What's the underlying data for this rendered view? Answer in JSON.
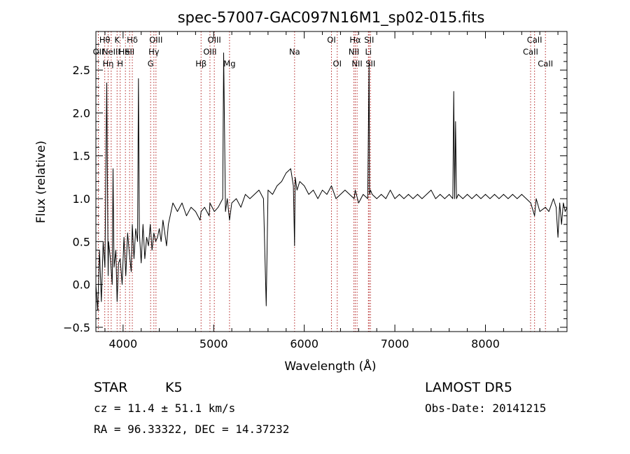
{
  "chart_data": {
    "type": "line",
    "title": "spec-57007-GAC097N16M1_sp02-015.fits",
    "xlabel": "Wavelength (Å)",
    "ylabel": "Flux (relative)",
    "xlim": [
      3700,
      8900
    ],
    "ylim": [
      -0.55,
      2.95
    ],
    "x_ticks": [
      4000,
      5000,
      6000,
      7000,
      8000
    ],
    "y_ticks": [
      -0.5,
      0.0,
      0.5,
      1.0,
      1.5,
      2.0,
      2.5
    ],
    "y_tick_labels": [
      "−0.5",
      "0.0",
      "0.5",
      "1.0",
      "1.5",
      "2.0",
      "2.5"
    ],
    "series_color": "#000000",
    "line_marker_color": "#b22222",
    "series": [
      {
        "x": [
          3700,
          3720,
          3740,
          3760,
          3780,
          3800,
          3820,
          3835,
          3840,
          3860,
          3880,
          3889,
          3900,
          3920,
          3934,
          3950,
          3968,
          3990,
          4010,
          4030,
          4050,
          4070,
          4090,
          4102,
          4120,
          4140,
          4160,
          4170,
          4180,
          4200,
          4220,
          4240,
          4260,
          4280,
          4300,
          4320,
          4340,
          4360,
          4380,
          4400,
          4420,
          4440,
          4460,
          4480,
          4500,
          4550,
          4600,
          4650,
          4700,
          4750,
          4800,
          4850,
          4861,
          4900,
          4950,
          4959,
          5007,
          5050,
          5100,
          5110,
          5130,
          5150,
          5175,
          5200,
          5250,
          5300,
          5350,
          5400,
          5450,
          5500,
          5550,
          5580,
          5600,
          5650,
          5700,
          5750,
          5800,
          5850,
          5880,
          5893,
          5900,
          5920,
          5950,
          6000,
          6050,
          6100,
          6150,
          6200,
          6250,
          6300,
          6350,
          6400,
          6450,
          6500,
          6550,
          6563,
          6600,
          6650,
          6700,
          6716,
          6720,
          6731,
          6750,
          6800,
          6850,
          6900,
          6950,
          7000,
          7050,
          7100,
          7150,
          7200,
          7250,
          7300,
          7350,
          7400,
          7450,
          7500,
          7550,
          7600,
          7640,
          7650,
          7660,
          7670,
          7680,
          7700,
          7750,
          7800,
          7850,
          7900,
          7950,
          8000,
          8050,
          8100,
          8150,
          8200,
          8250,
          8300,
          8350,
          8400,
          8450,
          8500,
          8542,
          8560,
          8600,
          8662,
          8700,
          8750,
          8780,
          8800,
          8820,
          8840,
          8860,
          8880,
          8900
        ],
        "y": [
          0.0,
          -0.3,
          0.4,
          -0.2,
          0.5,
          0.2,
          2.35,
          0.1,
          0.5,
          0.3,
          0.0,
          1.35,
          0.2,
          0.4,
          -0.2,
          0.25,
          0.3,
          0.0,
          0.55,
          0.1,
          0.6,
          0.35,
          0.15,
          0.7,
          0.3,
          0.65,
          0.5,
          2.4,
          0.6,
          0.25,
          0.7,
          0.3,
          0.55,
          0.45,
          0.7,
          0.4,
          0.6,
          0.5,
          0.55,
          0.65,
          0.5,
          0.75,
          0.6,
          0.45,
          0.7,
          0.95,
          0.85,
          0.95,
          0.8,
          0.9,
          0.85,
          0.75,
          0.85,
          0.9,
          0.8,
          0.95,
          0.85,
          0.9,
          1.0,
          2.7,
          0.85,
          1.0,
          0.75,
          0.95,
          1.0,
          0.9,
          1.05,
          1.0,
          1.05,
          1.1,
          1.0,
          -0.25,
          1.1,
          1.05,
          1.15,
          1.2,
          1.3,
          1.35,
          1.15,
          0.45,
          1.25,
          1.1,
          1.2,
          1.15,
          1.05,
          1.1,
          1.0,
          1.1,
          1.05,
          1.15,
          1.0,
          1.05,
          1.1,
          1.05,
          1.0,
          1.1,
          0.95,
          1.05,
          1.0,
          2.6,
          1.05,
          1.1,
          1.05,
          1.0,
          1.05,
          1.0,
          1.1,
          1.0,
          1.05,
          1.0,
          1.05,
          1.0,
          1.05,
          1.0,
          1.05,
          1.1,
          1.0,
          1.05,
          1.0,
          1.05,
          1.0,
          2.25,
          1.0,
          1.9,
          1.0,
          1.05,
          1.0,
          1.05,
          1.0,
          1.05,
          1.0,
          1.05,
          1.0,
          1.05,
          1.0,
          1.05,
          1.0,
          1.05,
          1.0,
          1.05,
          1.0,
          0.95,
          0.8,
          1.0,
          0.85,
          0.9,
          0.85,
          1.0,
          0.9,
          0.55,
          0.95,
          0.7,
          0.95,
          0.85,
          0.9
        ]
      }
    ],
    "line_markers": [
      {
        "x": 3727,
        "row": 1,
        "label": "OII"
      },
      {
        "x": 3798,
        "row": 0,
        "label": "Hθ"
      },
      {
        "x": 3835,
        "row": 2,
        "label": "Hη"
      },
      {
        "x": 3869,
        "row": 1,
        "label": "NeIII"
      },
      {
        "x": 3934,
        "row": 0,
        "label": "K"
      },
      {
        "x": 3968,
        "row": 2,
        "label": "H"
      },
      {
        "x": 4026,
        "row": 1,
        "label": "HeI"
      },
      {
        "x": 4072,
        "row": 1,
        "label": "SII"
      },
      {
        "x": 4102,
        "row": 0,
        "label": "Hδ"
      },
      {
        "x": 4304,
        "row": 2,
        "label": "G"
      },
      {
        "x": 4340,
        "row": 1,
        "label": "Hγ"
      },
      {
        "x": 4363,
        "row": 0,
        "label": "OIII"
      },
      {
        "x": 4861,
        "row": 2,
        "label": "Hβ"
      },
      {
        "x": 4959,
        "row": 1,
        "label": "OIII"
      },
      {
        "x": 5007,
        "row": 0,
        "label": "OIII"
      },
      {
        "x": 5175,
        "row": 2,
        "label": "Mg"
      },
      {
        "x": 5893,
        "row": 1,
        "label": "Na"
      },
      {
        "x": 6300,
        "row": 0,
        "label": "OI"
      },
      {
        "x": 6364,
        "row": 2,
        "label": "OI"
      },
      {
        "x": 6548,
        "row": 1,
        "label": "NII"
      },
      {
        "x": 6563,
        "row": 0,
        "label": "Hα"
      },
      {
        "x": 6583,
        "row": 2,
        "label": "NII"
      },
      {
        "x": 6708,
        "row": 1,
        "label": "Li"
      },
      {
        "x": 6716,
        "row": 0,
        "label": "SII"
      },
      {
        "x": 6731,
        "row": 2,
        "label": "SII"
      },
      {
        "x": 8498,
        "row": 1,
        "label": "CaII"
      },
      {
        "x": 8542,
        "row": 0,
        "label": "CaII"
      },
      {
        "x": 8662,
        "row": 2,
        "label": "CaII"
      }
    ]
  },
  "info": {
    "object_class": "STAR",
    "subclass": "K5",
    "survey": "LAMOST DR5",
    "cz": "cz = 11.4 ± 51.1 km/s",
    "obs_date": "Obs-Date: 20141215",
    "coords": "RA =  96.33322, DEC =  14.37232"
  }
}
